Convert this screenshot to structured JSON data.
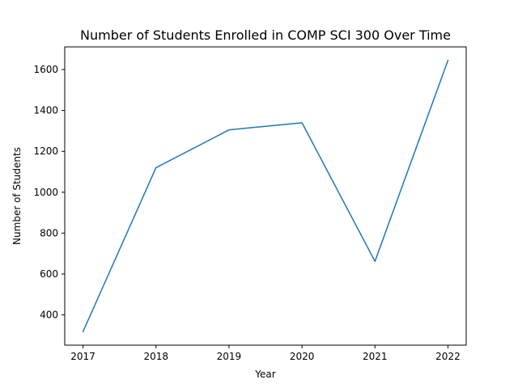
{
  "chart_data": {
    "type": "line",
    "title": "Number of Students Enrolled in COMP SCI 300 Over Time",
    "xlabel": "Year",
    "ylabel": "Number of Students",
    "x": [
      2017,
      2018,
      2019,
      2020,
      2021,
      2022
    ],
    "series": [
      {
        "values": [
          318,
          1120,
          1305,
          1340,
          662,
          1645
        ],
        "color": "#1f77b4"
      }
    ],
    "xlim": [
      2016.75,
      2022.25
    ],
    "ylim": [
      252,
      1711
    ],
    "xticks": [
      2017,
      2018,
      2019,
      2020,
      2021,
      2022
    ],
    "yticks": [
      400,
      600,
      800,
      1000,
      1200,
      1400,
      1600
    ],
    "grid": false
  }
}
